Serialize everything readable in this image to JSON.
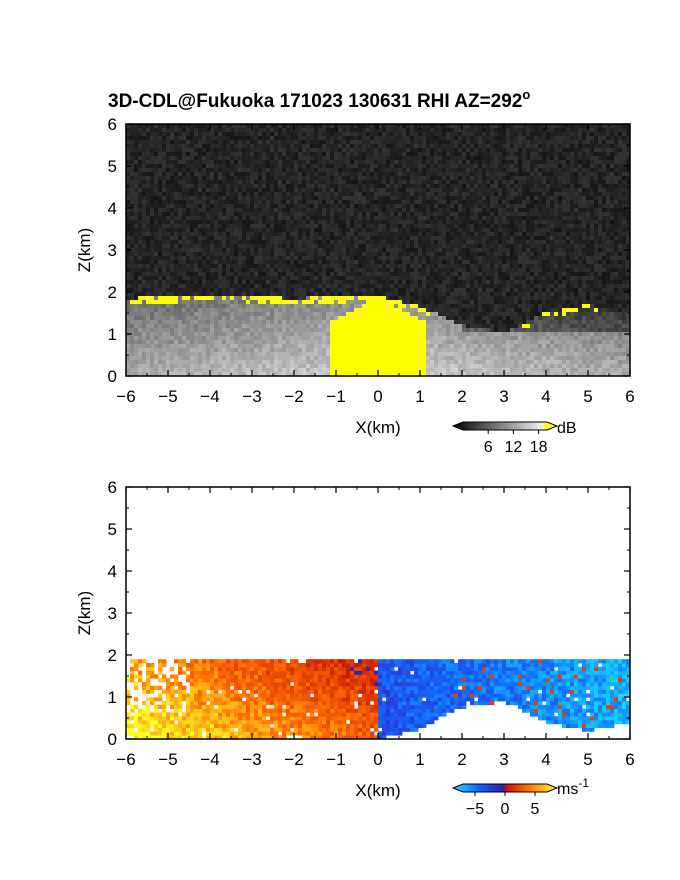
{
  "figure": {
    "title": "3D-CDL@Fukuoka 171023 130631 RHI AZ=292",
    "title_degree_mark": "o"
  },
  "chart_data": [
    {
      "type": "heatmap",
      "name": "backscatter-intensity",
      "xlabel": "X(km)",
      "ylabel": "Z(km)",
      "xlim": [
        -6,
        6
      ],
      "ylim": [
        0,
        6
      ],
      "xticks": [
        "-6",
        "-5",
        "-4",
        "-3",
        "-2",
        "-1",
        "0",
        "1",
        "2",
        "3",
        "4",
        "5",
        "6"
      ],
      "yticks": [
        "0",
        "1",
        "2",
        "3",
        "4",
        "5",
        "6"
      ],
      "grid": false,
      "colorbar": {
        "unit": "dB",
        "ticks": [
          "6",
          "12",
          "18"
        ],
        "range": [
          0,
          20
        ],
        "colormap": "grayscale dark-to-white, yellow above 18 dB"
      },
      "features": {
        "background": "dark noise (~0-4 dB) above boundary layer",
        "boundary_layer_top_km": [
          {
            "x": -6,
            "z": 1.85
          },
          {
            "x": -4,
            "z": 1.9
          },
          {
            "x": -2,
            "z": 1.85
          },
          {
            "x": 0,
            "z": 1.9
          },
          {
            "x": 1,
            "z": 1.65
          },
          {
            "x": 2,
            "z": 1.2
          },
          {
            "x": 3,
            "z": 1.05
          },
          {
            "x": 4,
            "z": 1.5
          },
          {
            "x": 5,
            "z": 1.7
          },
          {
            "x": 6,
            "z": 1.5
          }
        ],
        "saturated_region": "yellow (>18 dB) band along layer top and column near x=0 from surface to ~2 km"
      }
    },
    {
      "type": "heatmap",
      "name": "doppler-velocity",
      "xlabel": "X(km)",
      "ylabel": "Z(km)",
      "xlim": [
        -6,
        6
      ],
      "ylim": [
        0,
        6
      ],
      "xticks": [
        "-6",
        "-5",
        "-4",
        "-3",
        "-2",
        "-1",
        "0",
        "1",
        "2",
        "3",
        "4",
        "5",
        "6"
      ],
      "yticks": [
        "0",
        "1",
        "2",
        "3",
        "4",
        "5",
        "6"
      ],
      "grid": false,
      "colorbar": {
        "unit": "ms",
        "unit_exponent": "-1",
        "ticks": [
          "-5",
          "0",
          "5"
        ],
        "range": [
          -7,
          7
        ],
        "colormap": "cyan-blue (negative) / red-orange-yellow (positive)"
      },
      "features": {
        "positive_side": "x < 0, about +1 to +6 m/s (red to yellow)",
        "negative_side": "x > 0, about -2 to -6 m/s (blue)",
        "data_top_km": 1.9
      }
    }
  ]
}
